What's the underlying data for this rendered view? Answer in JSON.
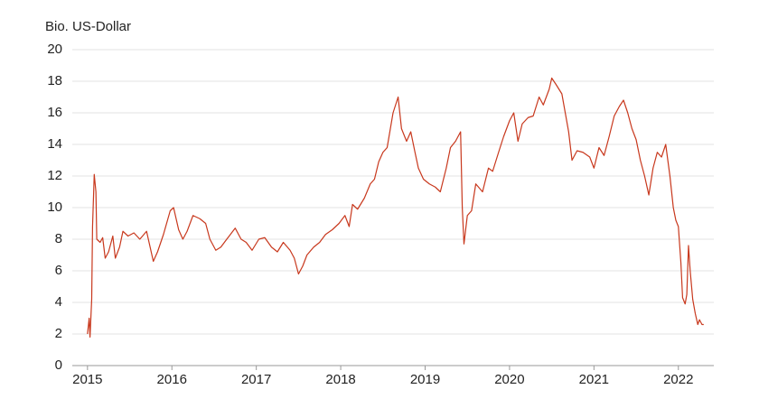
{
  "chart_data": {
    "type": "line",
    "y_label": "Bio. US-Dollar",
    "color": "#c8381d",
    "grid": true,
    "xlim": [
      2014.82,
      2022.42
    ],
    "xticks": [
      2015,
      2016,
      2017,
      2018,
      2019,
      2020,
      2021,
      2022
    ],
    "ylim": [
      0,
      20
    ],
    "yticks": [
      0,
      2,
      4,
      6,
      8,
      10,
      12,
      14,
      16,
      18,
      20
    ],
    "x": [
      2015.0,
      2015.02,
      2015.03,
      2015.05,
      2015.06,
      2015.08,
      2015.1,
      2015.11,
      2015.15,
      2015.18,
      2015.21,
      2015.25,
      2015.3,
      2015.33,
      2015.38,
      2015.42,
      2015.48,
      2015.55,
      2015.62,
      2015.7,
      2015.78,
      2015.83,
      2015.9,
      2015.98,
      2016.02,
      2016.08,
      2016.13,
      2016.18,
      2016.25,
      2016.33,
      2016.4,
      2016.45,
      2016.52,
      2016.58,
      2016.65,
      2016.75,
      2016.82,
      2016.88,
      2016.95,
      2017.03,
      2017.1,
      2017.18,
      2017.25,
      2017.32,
      2017.4,
      2017.45,
      2017.5,
      2017.55,
      2017.6,
      2017.68,
      2017.75,
      2017.82,
      2017.9,
      2017.98,
      2018.05,
      2018.1,
      2018.14,
      2018.2,
      2018.28,
      2018.35,
      2018.4,
      2018.45,
      2018.5,
      2018.55,
      2018.62,
      2018.68,
      2018.72,
      2018.78,
      2018.83,
      2018.88,
      2018.92,
      2018.98,
      2019.05,
      2019.12,
      2019.18,
      2019.25,
      2019.3,
      2019.36,
      2019.42,
      2019.44,
      2019.46,
      2019.5,
      2019.55,
      2019.6,
      2019.68,
      2019.75,
      2019.8,
      2019.87,
      2019.93,
      2020.0,
      2020.05,
      2020.1,
      2020.15,
      2020.22,
      2020.28,
      2020.35,
      2020.4,
      2020.47,
      2020.5,
      2020.55,
      2020.62,
      2020.66,
      2020.7,
      2020.74,
      2020.8,
      2020.87,
      2020.95,
      2021.0,
      2021.06,
      2021.12,
      2021.18,
      2021.24,
      2021.3,
      2021.35,
      2021.4,
      2021.45,
      2021.5,
      2021.55,
      2021.6,
      2021.65,
      2021.7,
      2021.75,
      2021.8,
      2021.85,
      2021.9,
      2021.94,
      2021.97,
      2022.0,
      2022.03,
      2022.05,
      2022.08,
      2022.1,
      2022.12,
      2022.14,
      2022.17,
      2022.2,
      2022.23,
      2022.25,
      2022.28,
      2022.3
    ],
    "values": [
      2.0,
      3.0,
      1.8,
      4.2,
      8.8,
      12.1,
      11.0,
      8.0,
      7.8,
      8.1,
      6.8,
      7.2,
      8.2,
      6.8,
      7.5,
      8.5,
      8.2,
      8.4,
      8.0,
      8.5,
      6.6,
      7.2,
      8.3,
      9.8,
      10.0,
      8.6,
      8.0,
      8.5,
      9.5,
      9.3,
      9.0,
      8.0,
      7.3,
      7.5,
      8.0,
      8.7,
      8.0,
      7.8,
      7.3,
      8.0,
      8.1,
      7.5,
      7.2,
      7.8,
      7.3,
      6.8,
      5.8,
      6.3,
      7.0,
      7.5,
      7.8,
      8.3,
      8.6,
      9.0,
      9.5,
      8.8,
      10.2,
      9.9,
      10.6,
      11.5,
      11.8,
      12.9,
      13.5,
      13.8,
      16.0,
      17.0,
      15.0,
      14.2,
      14.8,
      13.5,
      12.5,
      11.8,
      11.5,
      11.3,
      11.0,
      12.5,
      13.8,
      14.2,
      14.8,
      10.0,
      7.7,
      9.5,
      9.8,
      11.5,
      11.0,
      12.5,
      12.3,
      13.5,
      14.5,
      15.5,
      16.0,
      14.2,
      15.3,
      15.7,
      15.8,
      17.0,
      16.5,
      17.5,
      18.2,
      17.8,
      17.2,
      16.0,
      14.8,
      13.0,
      13.6,
      13.5,
      13.2,
      12.5,
      13.8,
      13.3,
      14.5,
      15.8,
      16.4,
      16.8,
      16.0,
      15.0,
      14.3,
      13.0,
      12.0,
      10.8,
      12.5,
      13.5,
      13.2,
      14.0,
      12.0,
      10.0,
      9.2,
      8.8,
      6.5,
      4.3,
      3.9,
      4.5,
      7.6,
      6.0,
      4.2,
      3.3,
      2.6,
      2.9,
      2.6,
      2.6
    ]
  }
}
